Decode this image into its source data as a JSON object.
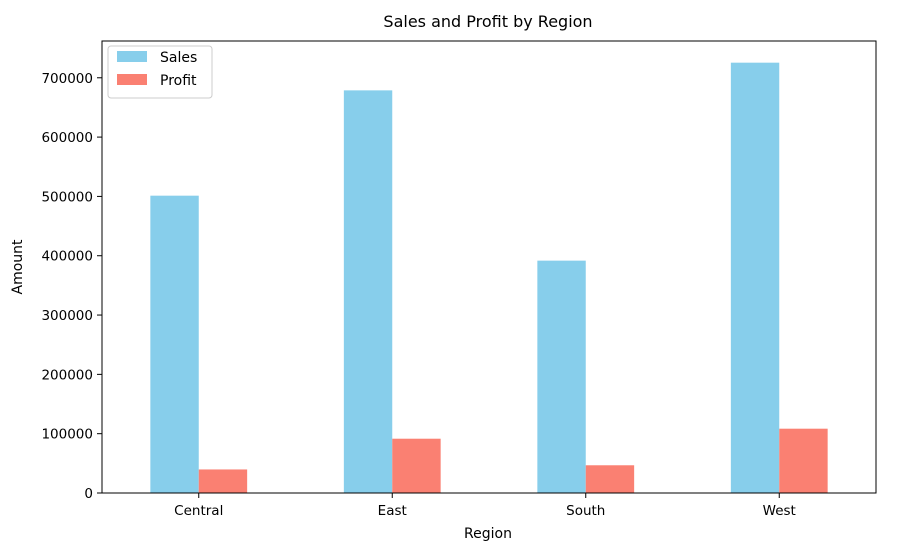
{
  "chart_data": {
    "type": "bar",
    "title": "Sales and Profit by Region",
    "xlabel": "Region",
    "ylabel": "Amount",
    "categories": [
      "Central",
      "East",
      "South",
      "West"
    ],
    "series": [
      {
        "name": "Sales",
        "color": "#87CEEB",
        "values": [
          501240,
          678781,
          391722,
          725458
        ]
      },
      {
        "name": "Profit",
        "color": "#FA8072",
        "values": [
          39706,
          91523,
          46749,
          108418
        ]
      }
    ],
    "ylim": [
      0,
      762000
    ],
    "yticks": [
      0,
      100000,
      200000,
      300000,
      400000,
      500000,
      600000,
      700000
    ],
    "grid": false,
    "legend_position": "top-left"
  }
}
